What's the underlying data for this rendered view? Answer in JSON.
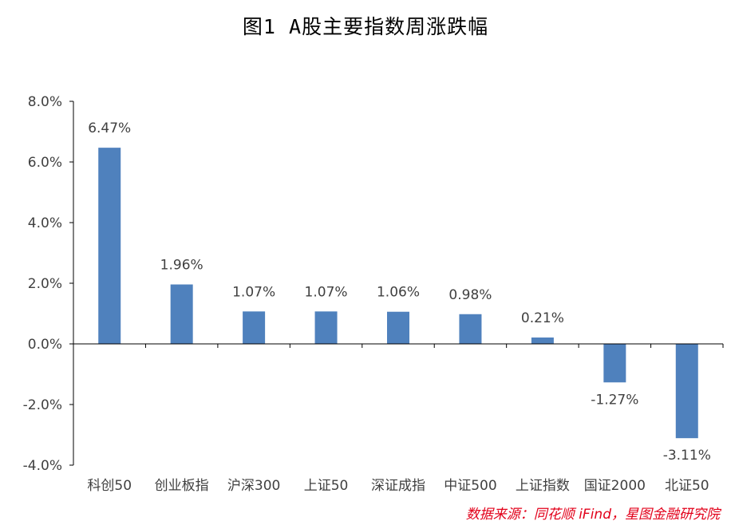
{
  "title": "图1  A股主要指数周涨跌幅",
  "source": "数据来源：同花顺 iFind，星图金融研究院",
  "colors": {
    "bar": "#4f81bd",
    "axis": "#000000",
    "text": "#404040",
    "source": "#e2001a"
  },
  "chart_data": {
    "type": "bar",
    "categories": [
      "科创50",
      "创业板指",
      "沪深300",
      "上证50",
      "深证成指",
      "中证500",
      "上证指数",
      "国证2000",
      "北证50"
    ],
    "values": [
      6.47,
      1.96,
      1.07,
      1.07,
      1.06,
      0.98,
      0.21,
      -1.27,
      -3.11
    ],
    "value_labels": [
      "6.47%",
      "1.96%",
      "1.07%",
      "1.07%",
      "1.06%",
      "0.98%",
      "0.21%",
      "-1.27%",
      "-3.11%"
    ],
    "yticks": [
      8,
      6,
      4,
      2,
      0,
      -2,
      -4
    ],
    "ytick_labels": [
      "8.0%",
      "6.0%",
      "4.0%",
      "2.0%",
      "0.0%",
      "-2.0%",
      "-4.0%"
    ],
    "ylim": [
      -4,
      8
    ],
    "grid": false,
    "legend": false
  }
}
